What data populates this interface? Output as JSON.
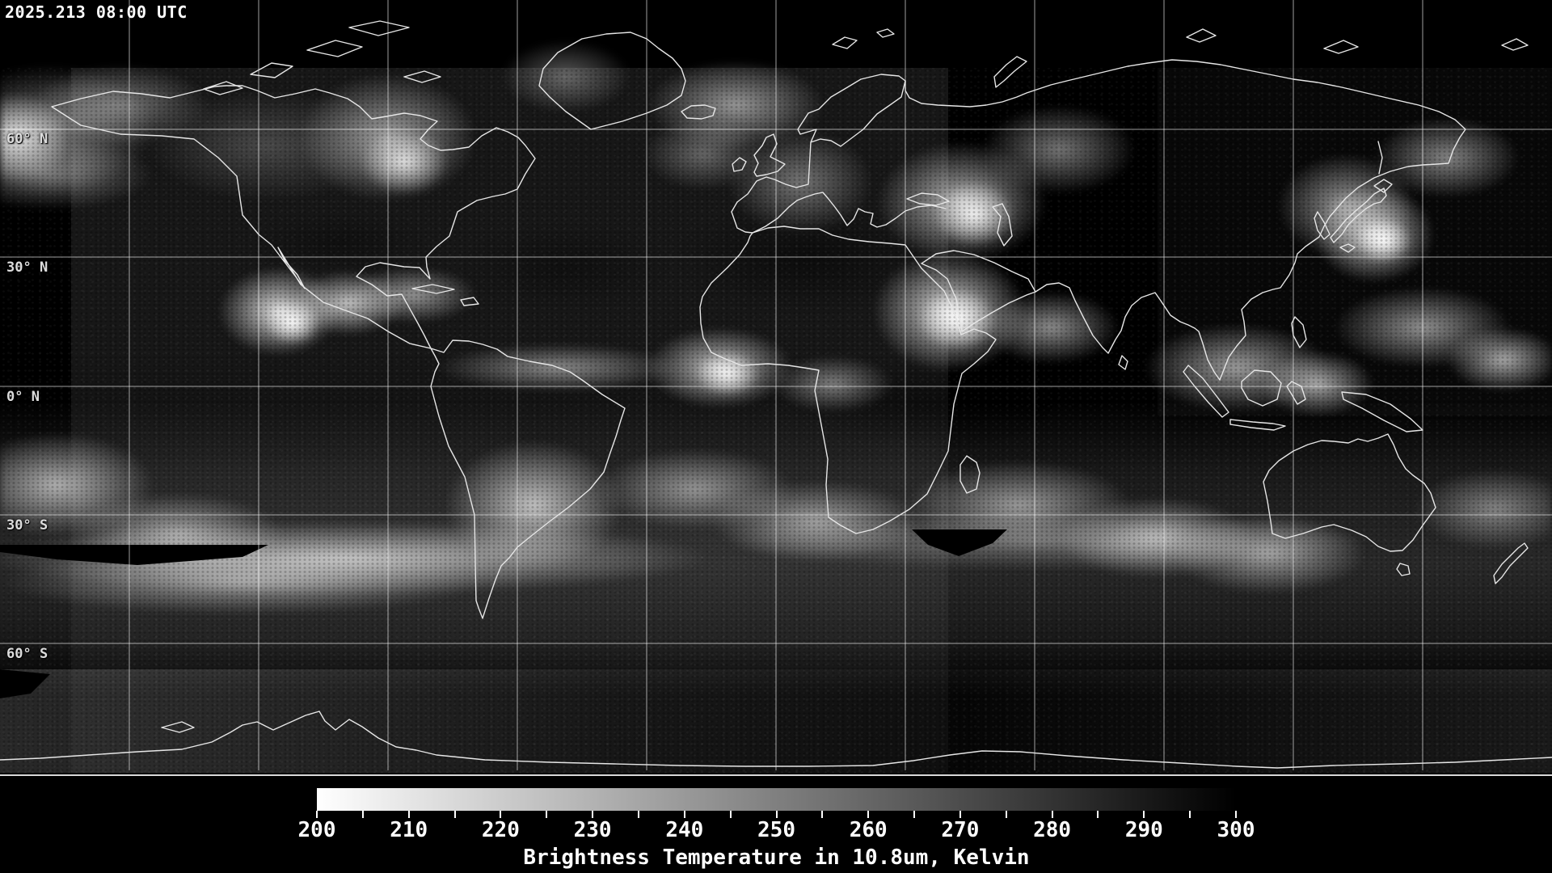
{
  "header": {
    "timestamp": "2025.213 08:00 UTC"
  },
  "map": {
    "lat_labels": [
      "60° N",
      "30° N",
      "0° N",
      "30° S",
      "60° S"
    ],
    "grid": {
      "lat_step_deg": 30,
      "lon_step_deg": 30,
      "lat_line_count": 5,
      "lon_line_count": 11
    }
  },
  "colorbar": {
    "title": "Brightness Temperature in 10.8um, Kelvin",
    "unit": "Kelvin",
    "min": 200,
    "max": 300,
    "tick_labels": [
      "200",
      "210",
      "220",
      "230",
      "240",
      "250",
      "260",
      "270",
      "280",
      "290",
      "300"
    ],
    "tick_values": [
      200,
      205,
      210,
      215,
      220,
      225,
      230,
      235,
      240,
      245,
      250,
      255,
      260,
      265,
      270,
      275,
      280,
      285,
      290,
      295,
      300
    ],
    "scale_min_color": "#ffffff",
    "scale_max_color": "#000000"
  }
}
